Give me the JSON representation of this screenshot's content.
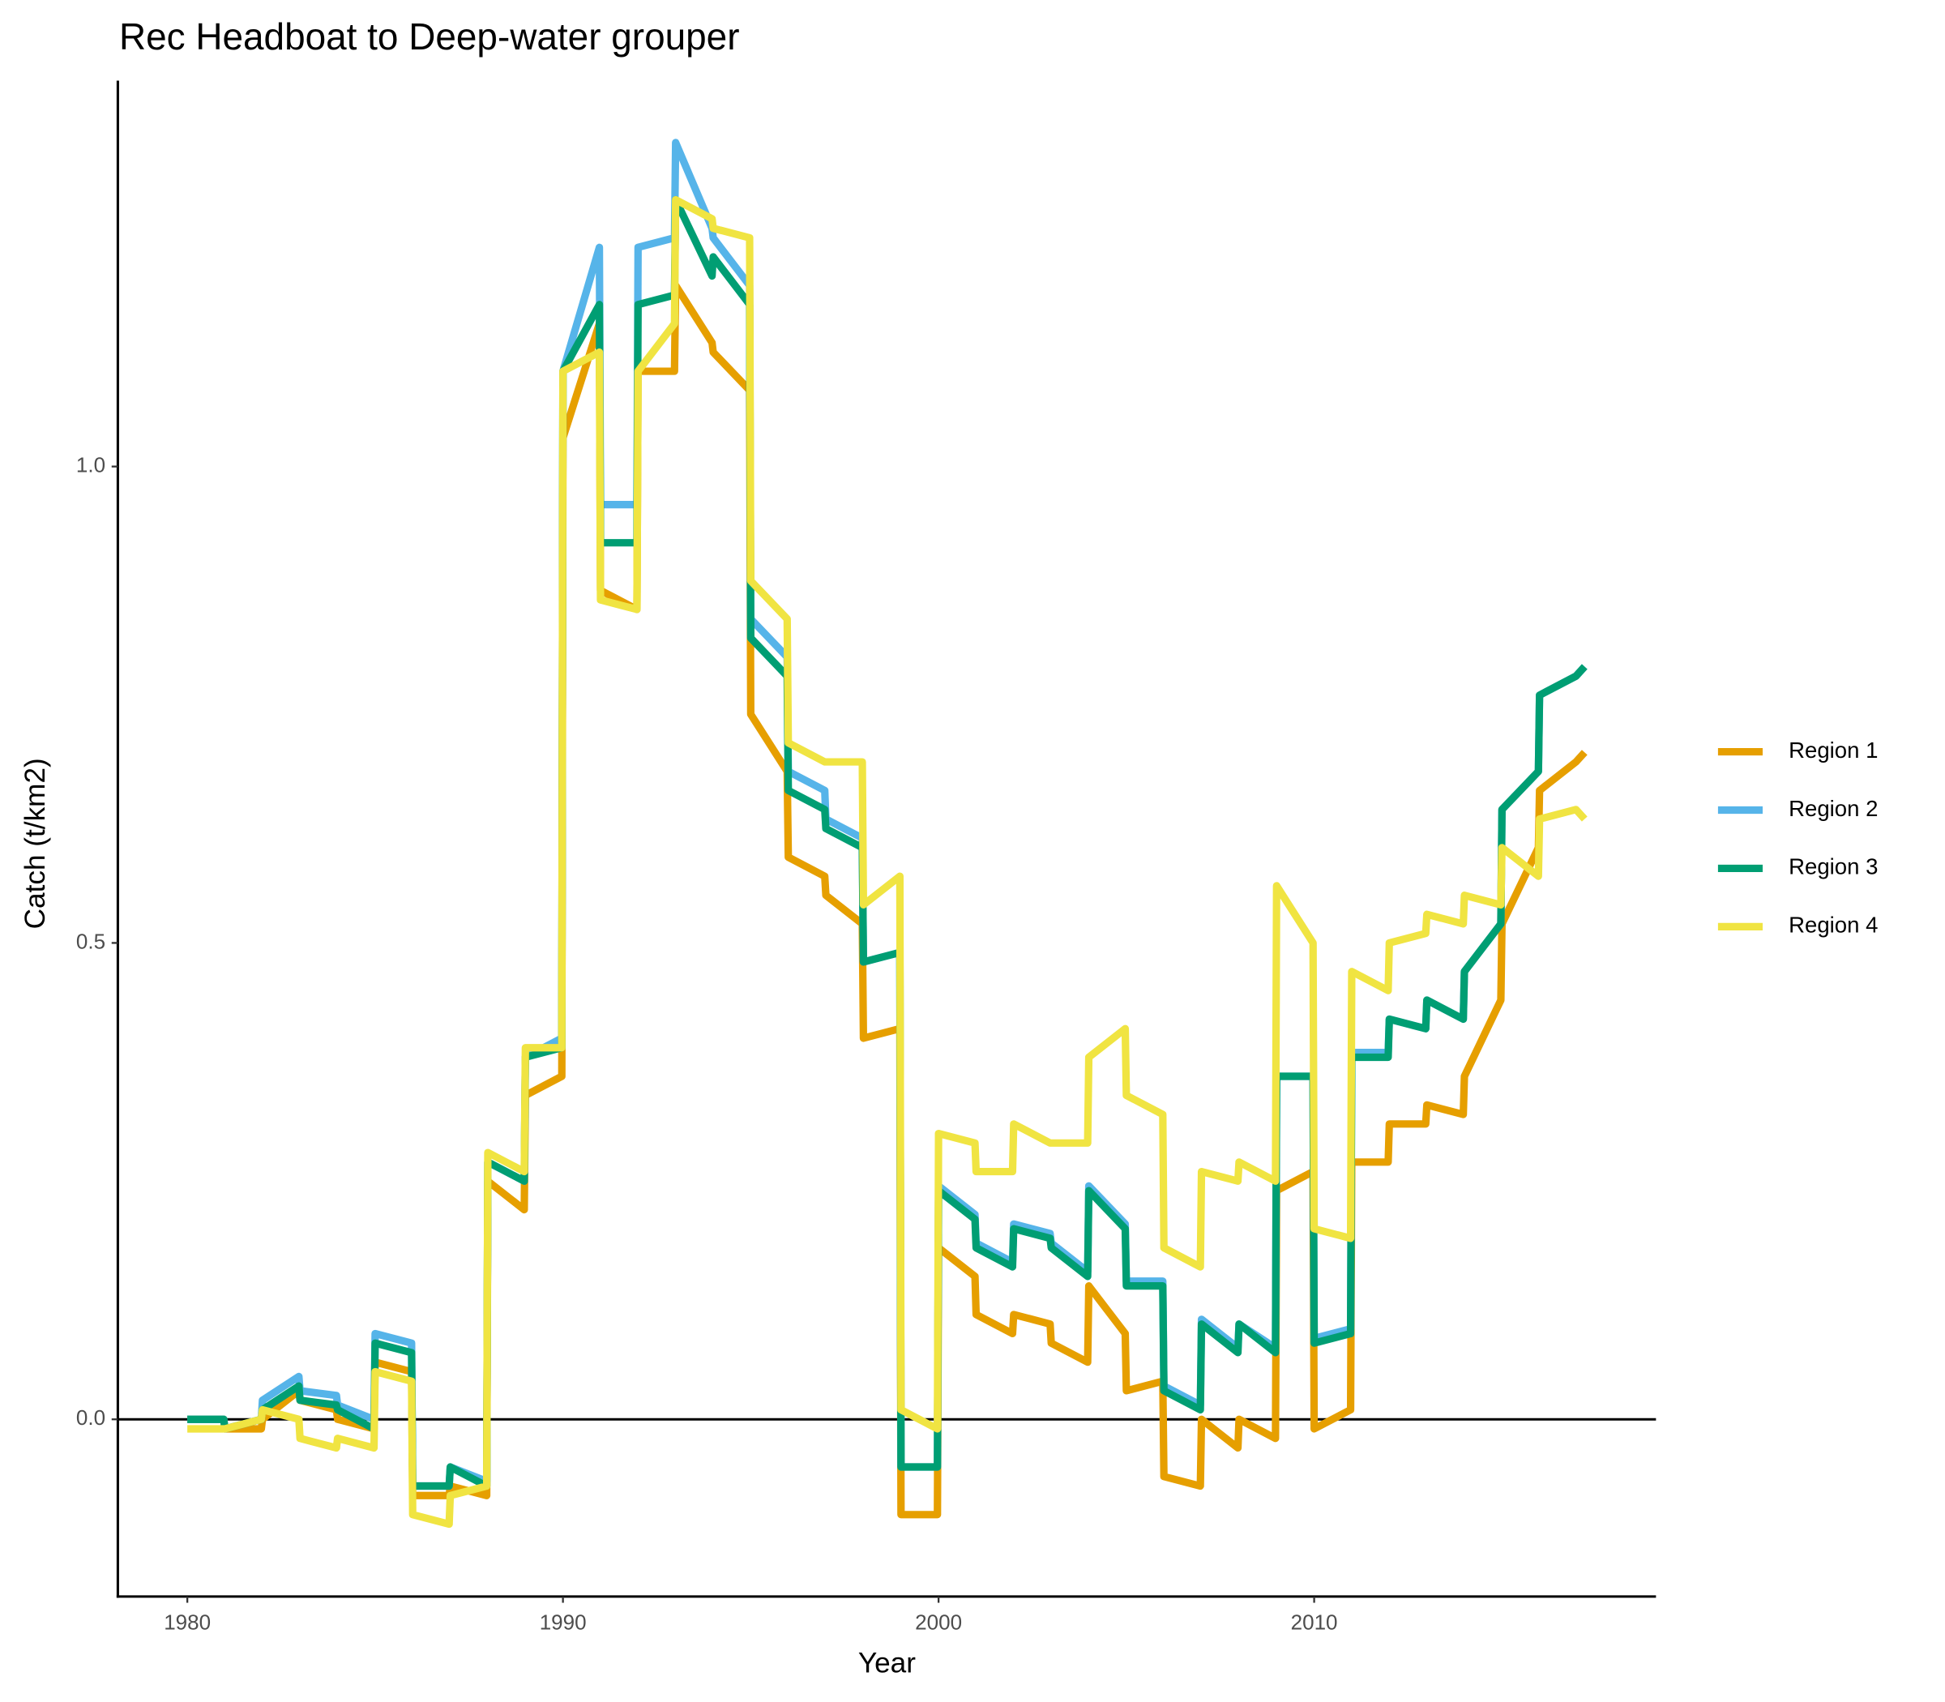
{
  "chart_data": {
    "type": "line",
    "title": "Rec Headboat to Deep-water grouper",
    "x_label": "Year",
    "y_label": "Catch (t/km2)",
    "xlim": [
      1978.15,
      2019.1
    ],
    "ylim": [
      -0.186,
      1.405
    ],
    "xticks": [
      1980,
      1990,
      2000,
      2010
    ],
    "yticks": [
      {
        "value": 0,
        "label": "0.0"
      },
      0.5,
      {
        "value": 1,
        "label": "1.0"
      }
    ],
    "hline": 0,
    "grid": false,
    "legend": "right",
    "x": [
      1980,
      1980.97,
      1981,
      1981.97,
      1982,
      1982.97,
      1983,
      1983.97,
      1984,
      1984.97,
      1985,
      1985.97,
      1986,
      1986.97,
      1987,
      1987.97,
      1988,
      1988.97,
      1989,
      1989.97,
      1990,
      1990.97,
      1991,
      1991.97,
      1992,
      1992.97,
      1993,
      1993.97,
      1994,
      1994.97,
      1995,
      1995.97,
      1996,
      1996.97,
      1997,
      1997.97,
      1998,
      1998.97,
      1999,
      1999.97,
      2000,
      2000.97,
      2001,
      2001.97,
      2002,
      2002.97,
      2003,
      2003.97,
      2004,
      2004.97,
      2005,
      2005.97,
      2006,
      2006.97,
      2007,
      2007.97,
      2008,
      2008.97,
      2009,
      2009.97,
      2010,
      2010.97,
      2011,
      2011.97,
      2012,
      2012.97,
      2013,
      2013.97,
      2014,
      2014.97,
      2015,
      2015.97,
      2016,
      2016.97,
      2017.2
    ],
    "series": [
      {
        "name": "Region 1",
        "color": "#E69F00",
        "values": [
          0,
          0,
          -0.01,
          -0.01,
          0,
          0.03,
          0.02,
          0.01,
          0,
          -0.01,
          0.06,
          0.05,
          -0.08,
          -0.08,
          -0.07,
          -0.08,
          0.25,
          0.22,
          0.34,
          0.36,
          1.03,
          1.15,
          0.87,
          0.85,
          1.1,
          1.1,
          1.19,
          1.13,
          1.12,
          1.08,
          0.74,
          0.68,
          0.59,
          0.57,
          0.55,
          0.52,
          0.4,
          0.41,
          -0.1,
          -0.1,
          0.18,
          0.15,
          0.11,
          0.09,
          0.11,
          0.1,
          0.08,
          0.06,
          0.14,
          0.09,
          0.03,
          0.04,
          -0.06,
          -0.07,
          0,
          -0.03,
          0,
          -0.02,
          0.24,
          0.26,
          -0.01,
          0.01,
          0.27,
          0.27,
          0.31,
          0.31,
          0.33,
          0.32,
          0.36,
          0.44,
          0.52,
          0.6,
          0.66,
          0.69,
          0.7
        ]
      },
      {
        "name": "Region 2",
        "color": "#56B4E9",
        "values": [
          0,
          0,
          -0.01,
          0,
          0.02,
          0.045,
          0.03,
          0.025,
          0.015,
          0,
          0.09,
          0.08,
          -0.07,
          -0.07,
          -0.05,
          -0.065,
          0.27,
          0.25,
          0.38,
          0.4,
          1.1,
          1.23,
          0.96,
          0.96,
          1.23,
          1.24,
          1.34,
          1.25,
          1.24,
          1.19,
          0.84,
          0.8,
          0.68,
          0.66,
          0.63,
          0.61,
          0.48,
          0.49,
          -0.05,
          -0.05,
          0.245,
          0.215,
          0.185,
          0.165,
          0.205,
          0.195,
          0.185,
          0.155,
          0.245,
          0.205,
          0.145,
          0.145,
          0.035,
          0.015,
          0.105,
          0.075,
          0.1,
          0.075,
          0.36,
          0.36,
          0.085,
          0.095,
          0.385,
          0.385,
          0.42,
          0.41,
          0.44,
          0.42,
          0.47,
          0.52,
          0.64,
          0.68,
          0.76,
          0.78,
          0.79
        ]
      },
      {
        "name": "Region 3",
        "color": "#009E73",
        "values": [
          0,
          0,
          -0.01,
          0,
          0.01,
          0.035,
          0.02,
          0.015,
          0.01,
          -0.01,
          0.08,
          0.07,
          -0.07,
          -0.07,
          -0.05,
          -0.07,
          0.27,
          0.25,
          0.38,
          0.39,
          1.1,
          1.17,
          0.92,
          0.92,
          1.17,
          1.18,
          1.28,
          1.2,
          1.22,
          1.17,
          0.82,
          0.78,
          0.66,
          0.64,
          0.62,
          0.6,
          0.48,
          0.49,
          -0.05,
          -0.05,
          0.24,
          0.21,
          0.18,
          0.16,
          0.2,
          0.19,
          0.18,
          0.15,
          0.24,
          0.2,
          0.14,
          0.14,
          0.03,
          0.01,
          0.1,
          0.07,
          0.1,
          0.07,
          0.36,
          0.36,
          0.08,
          0.09,
          0.38,
          0.38,
          0.42,
          0.41,
          0.44,
          0.42,
          0.47,
          0.52,
          0.64,
          0.68,
          0.76,
          0.78,
          0.79
        ]
      },
      {
        "name": "Region 4",
        "color": "#F0E442",
        "values": [
          -0.01,
          -0.01,
          -0.01,
          0,
          0.01,
          0,
          -0.02,
          -0.03,
          -0.02,
          -0.03,
          0.05,
          0.04,
          -0.1,
          -0.11,
          -0.08,
          -0.07,
          0.28,
          0.26,
          0.39,
          0.39,
          1.1,
          1.12,
          0.86,
          0.85,
          1.1,
          1.15,
          1.28,
          1.26,
          1.25,
          1.24,
          0.88,
          0.84,
          0.71,
          0.69,
          0.69,
          0.69,
          0.54,
          0.57,
          0.01,
          -0.01,
          0.3,
          0.29,
          0.26,
          0.26,
          0.31,
          0.29,
          0.29,
          0.29,
          0.38,
          0.41,
          0.34,
          0.32,
          0.18,
          0.16,
          0.26,
          0.25,
          0.27,
          0.25,
          0.56,
          0.5,
          0.2,
          0.19,
          0.47,
          0.45,
          0.5,
          0.51,
          0.53,
          0.52,
          0.55,
          0.54,
          0.6,
          0.57,
          0.63,
          0.64,
          0.63
        ]
      }
    ]
  }
}
